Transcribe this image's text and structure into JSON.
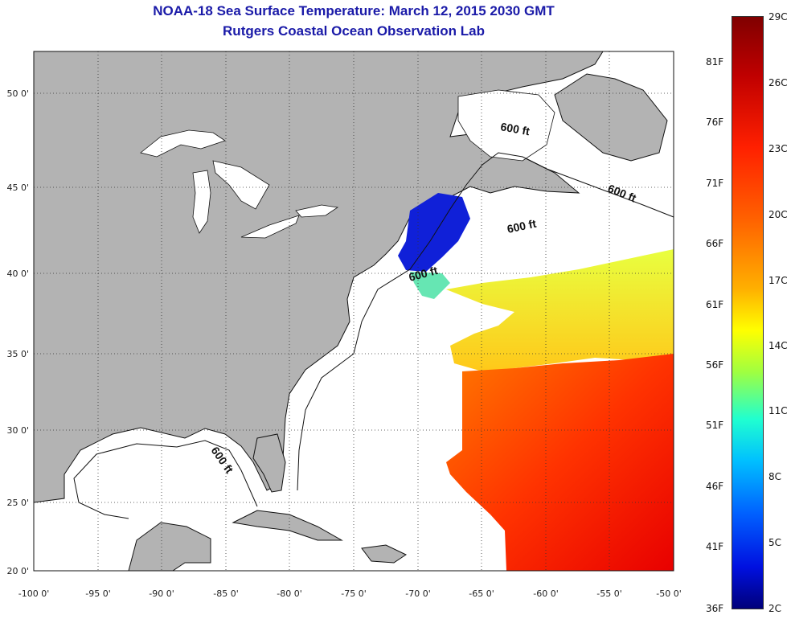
{
  "title": {
    "line1": "NOAA-18 Sea Surface Temperature:  March 12, 2015 2030 GMT",
    "line2": "Rutgers Coastal Ocean Observation Lab"
  },
  "axes": {
    "x_ticks": [
      "-100 0'",
      "-95 0'",
      "-90 0'",
      "-85 0'",
      "-80 0'",
      "-75 0'",
      "-70 0'",
      "-65 0'",
      "-60 0'",
      "-55 0'",
      "-50 0'"
    ],
    "y_ticks": [
      "50 0'",
      "45 0'",
      "40 0'",
      "35 0'",
      "30 0'",
      "25 0'",
      "20 0'"
    ]
  },
  "contour_labels": [
    "600 ft",
    "600 ft",
    "600 ft",
    "600 ft",
    "600 ft"
  ],
  "colorbar": {
    "celsius": [
      "29C",
      "26C",
      "23C",
      "20C",
      "17C",
      "14C",
      "11C",
      "8C",
      "5C",
      "2C"
    ],
    "fahrenheit": [
      "81F",
      "76F",
      "71F",
      "66F",
      "61F",
      "56F",
      "51F",
      "46F",
      "41F",
      "36F"
    ]
  },
  "colors": {
    "land": "#b3b3b3",
    "title": "#1a1aa8",
    "ocean": "#ffffff"
  }
}
